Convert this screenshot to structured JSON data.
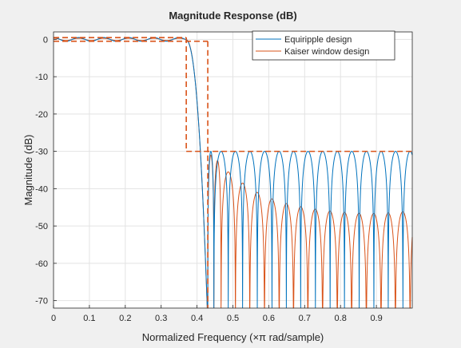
{
  "chart_data": {
    "type": "line",
    "title": "Magnitude Response (dB)",
    "xlabel": "Normalized Frequency (×π rad/sample)",
    "ylabel": "Magnitude (dB)",
    "xlim": [
      0,
      1
    ],
    "ylim": [
      -72,
      2
    ],
    "xticks": [
      0,
      0.1,
      0.2,
      0.3,
      0.4,
      0.5,
      0.6,
      0.7,
      0.8,
      0.9
    ],
    "yticks": [
      0,
      -10,
      -20,
      -30,
      -40,
      -50,
      -60,
      -70
    ],
    "xtick_labels": [
      "0",
      "0.1",
      "0.2",
      "0.3",
      "0.4",
      "0.5",
      "0.6",
      "0.7",
      "0.8",
      "0.9"
    ],
    "ytick_labels": [
      "0",
      "-10",
      "-20",
      "-30",
      "-40",
      "-50",
      "-60",
      "-70"
    ],
    "grid": true,
    "legend_position": "top-right",
    "colors": {
      "equiripple": "#0072bd",
      "kaiser": "#d95319",
      "mask": "#d95319",
      "background": "#f0f0f0",
      "axes": "#ffffff",
      "grid": "#e3e3e3"
    },
    "series": [
      {
        "name": "Equiripple design",
        "passband_ripple_db": 0.5,
        "passband_edge": 0.37,
        "transition_end": 0.43,
        "stopband_peak_db": -30,
        "stopband_nulls_x": [
          0.447,
          0.487,
          0.527,
          0.568,
          0.609,
          0.649,
          0.689,
          0.73,
          0.771,
          0.811,
          0.852,
          0.893,
          0.933,
          0.974
        ]
      },
      {
        "name": "Kaiser window design",
        "passband_ripple_db": 0.3,
        "passband_edge": 0.37,
        "transition_end": 0.43,
        "stopband_peaks": [
          {
            "x": 0.447,
            "y": -31
          },
          {
            "x": 0.467,
            "y": -34
          },
          {
            "x": 0.507,
            "y": -37
          },
          {
            "x": 0.547,
            "y": -40
          },
          {
            "x": 0.588,
            "y": -42
          },
          {
            "x": 0.629,
            "y": -43.5
          },
          {
            "x": 0.669,
            "y": -44.5
          },
          {
            "x": 0.709,
            "y": -45.2
          },
          {
            "x": 0.75,
            "y": -45.8
          },
          {
            "x": 0.791,
            "y": -46.2
          },
          {
            "x": 0.831,
            "y": -46.5
          },
          {
            "x": 0.872,
            "y": -46.7
          },
          {
            "x": 0.913,
            "y": -46.6
          },
          {
            "x": 0.953,
            "y": -46.4
          },
          {
            "x": 0.994,
            "y": -46
          }
        ]
      }
    ],
    "mask": {
      "passband": {
        "x": [
          0,
          0.37
        ],
        "upper_db": 0.5,
        "lower_db": -0.5
      },
      "transition": {
        "x": [
          0.37,
          0.43
        ]
      },
      "stopband": {
        "x": [
          0.43,
          1
        ],
        "level_db": -30
      }
    }
  }
}
